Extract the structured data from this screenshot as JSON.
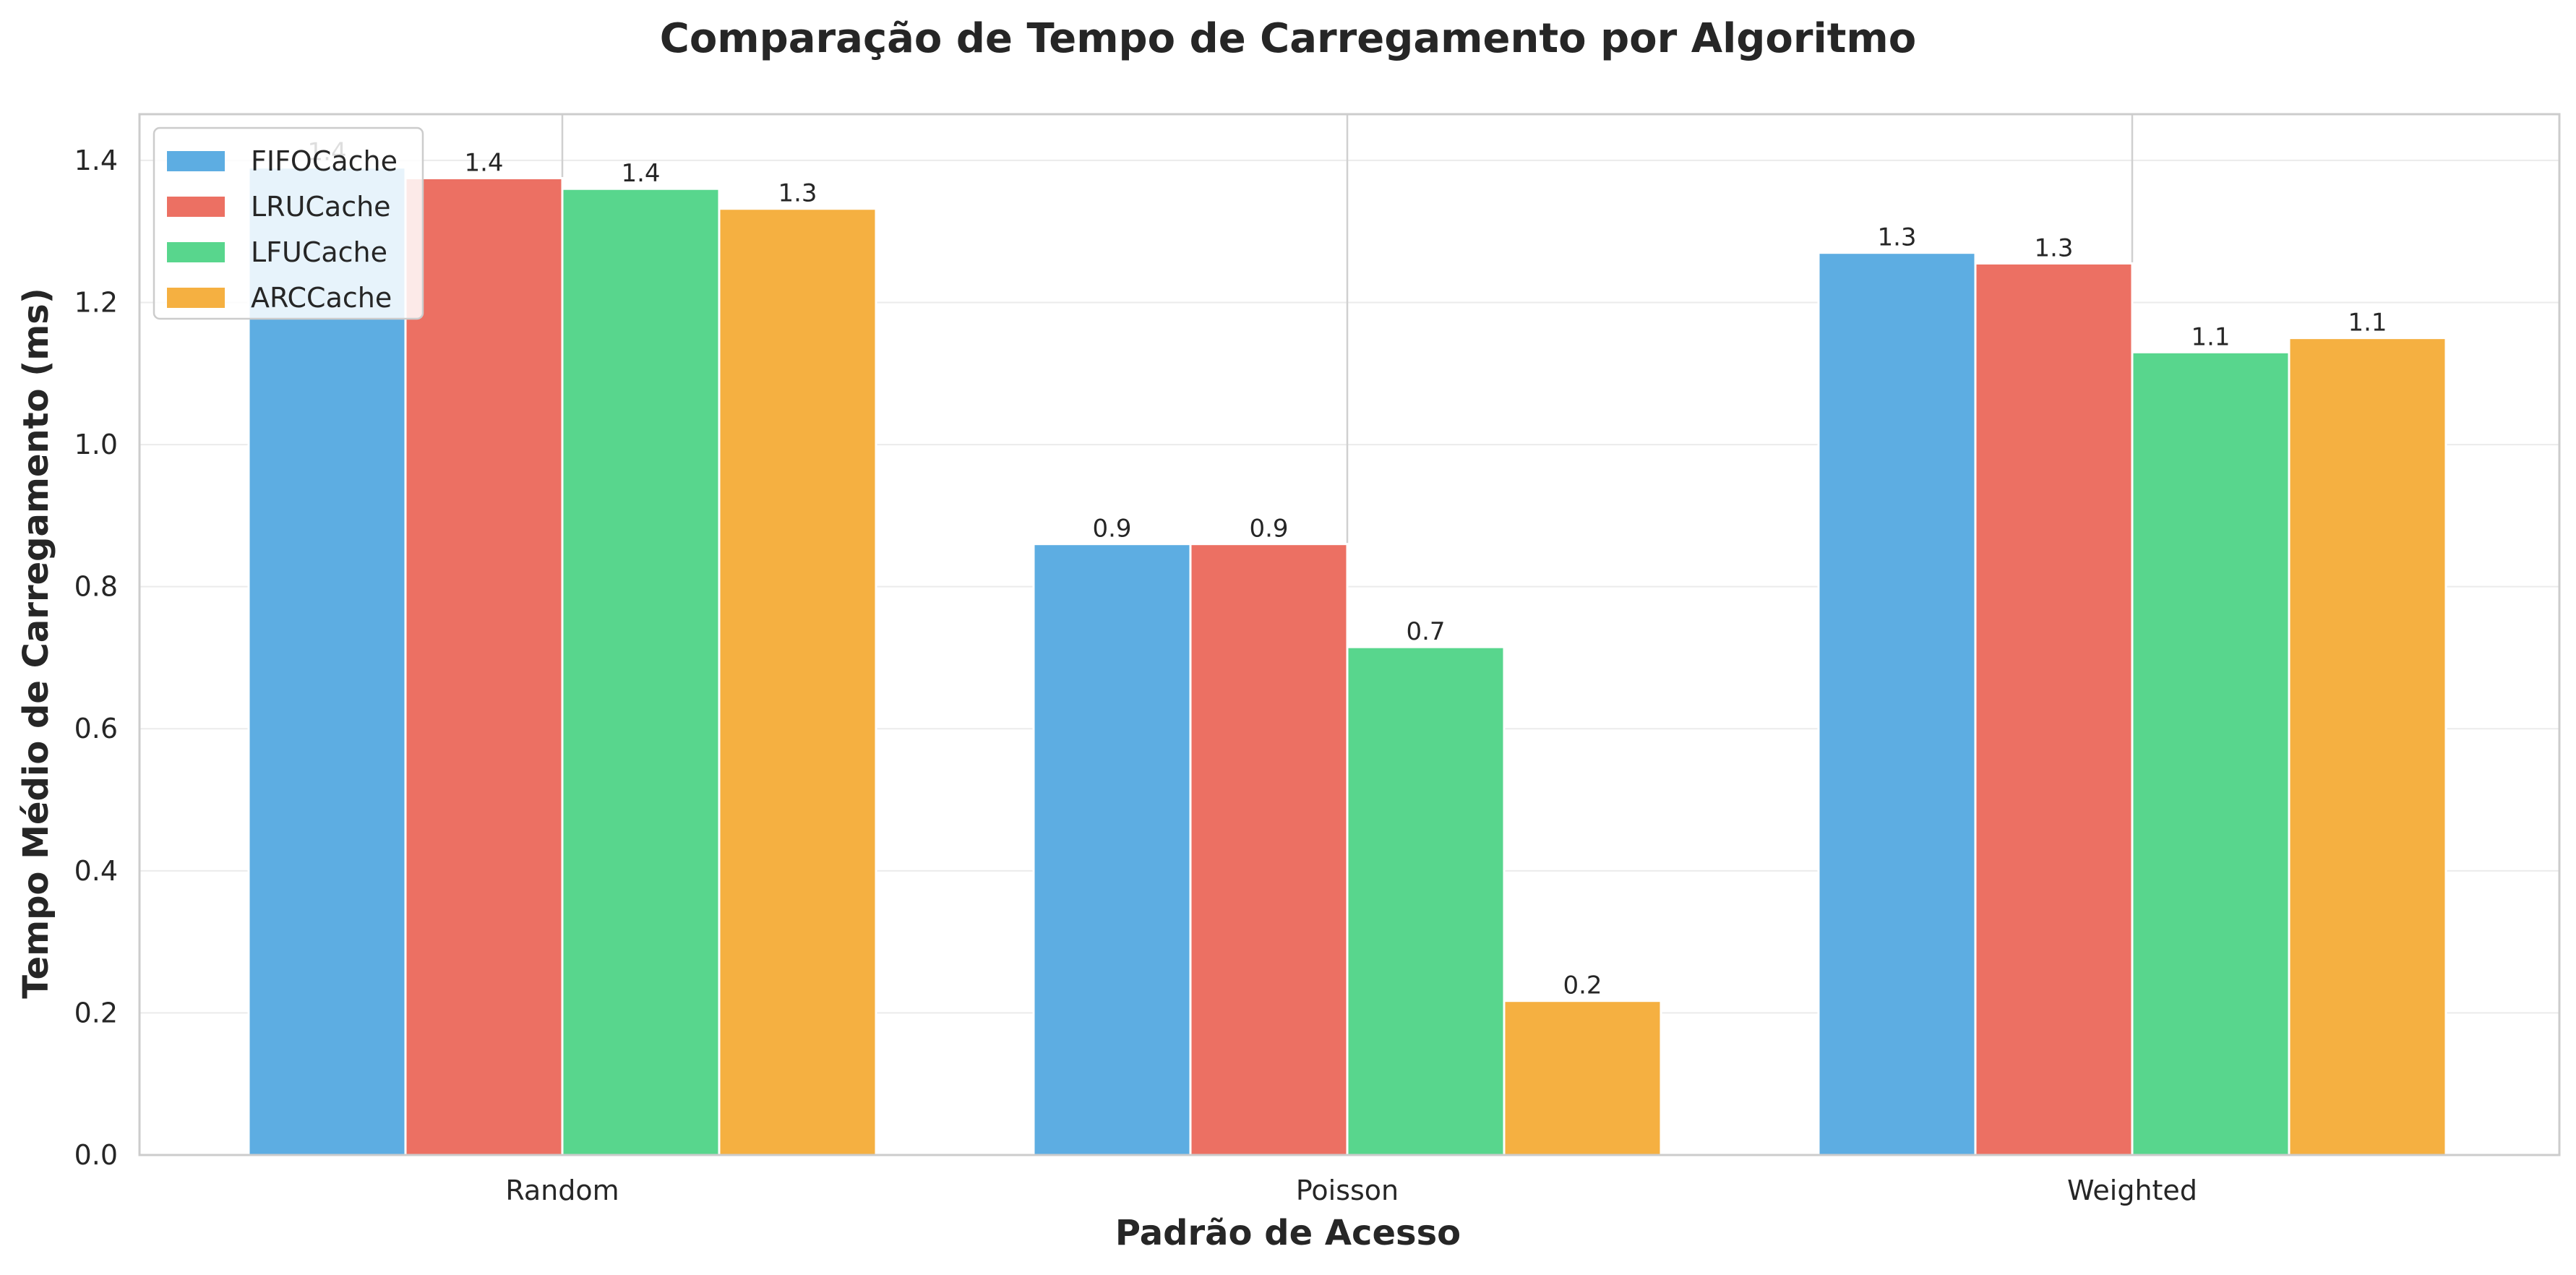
{
  "chart_data": {
    "type": "bar",
    "title": "Comparação de Tempo de Carregamento por Algoritmo",
    "xlabel": "Padrão de Acesso",
    "ylabel": "Tempo Médio de Carregamento (ms)",
    "categories": [
      "Random",
      "Poisson",
      "Weighted"
    ],
    "series": [
      {
        "name": "FIFOCache",
        "color": "#5DADE2",
        "values": [
          1.39,
          0.86,
          1.27
        ],
        "labels": [
          "1.4",
          "0.9",
          "1.3"
        ]
      },
      {
        "name": "LRUCache",
        "color": "#EC7063",
        "values": [
          1.375,
          0.86,
          1.255
        ],
        "labels": [
          "1.4",
          "0.9",
          "1.3"
        ]
      },
      {
        "name": "LFUCache",
        "color": "#58D68D",
        "values": [
          1.36,
          0.715,
          1.13
        ],
        "labels": [
          "1.4",
          "0.7",
          "1.1"
        ]
      },
      {
        "name": "ARCCache",
        "color": "#F5B041",
        "values": [
          1.332,
          0.217,
          1.15
        ],
        "labels": [
          "1.3",
          "0.2",
          "1.1"
        ]
      }
    ],
    "ylim": [
      0,
      1.465
    ],
    "yticks": [
      "0.0",
      "0.2",
      "0.4",
      "0.6",
      "0.8",
      "1.0",
      "1.2",
      "1.4"
    ],
    "grid": true,
    "legend_position": "top-left"
  }
}
